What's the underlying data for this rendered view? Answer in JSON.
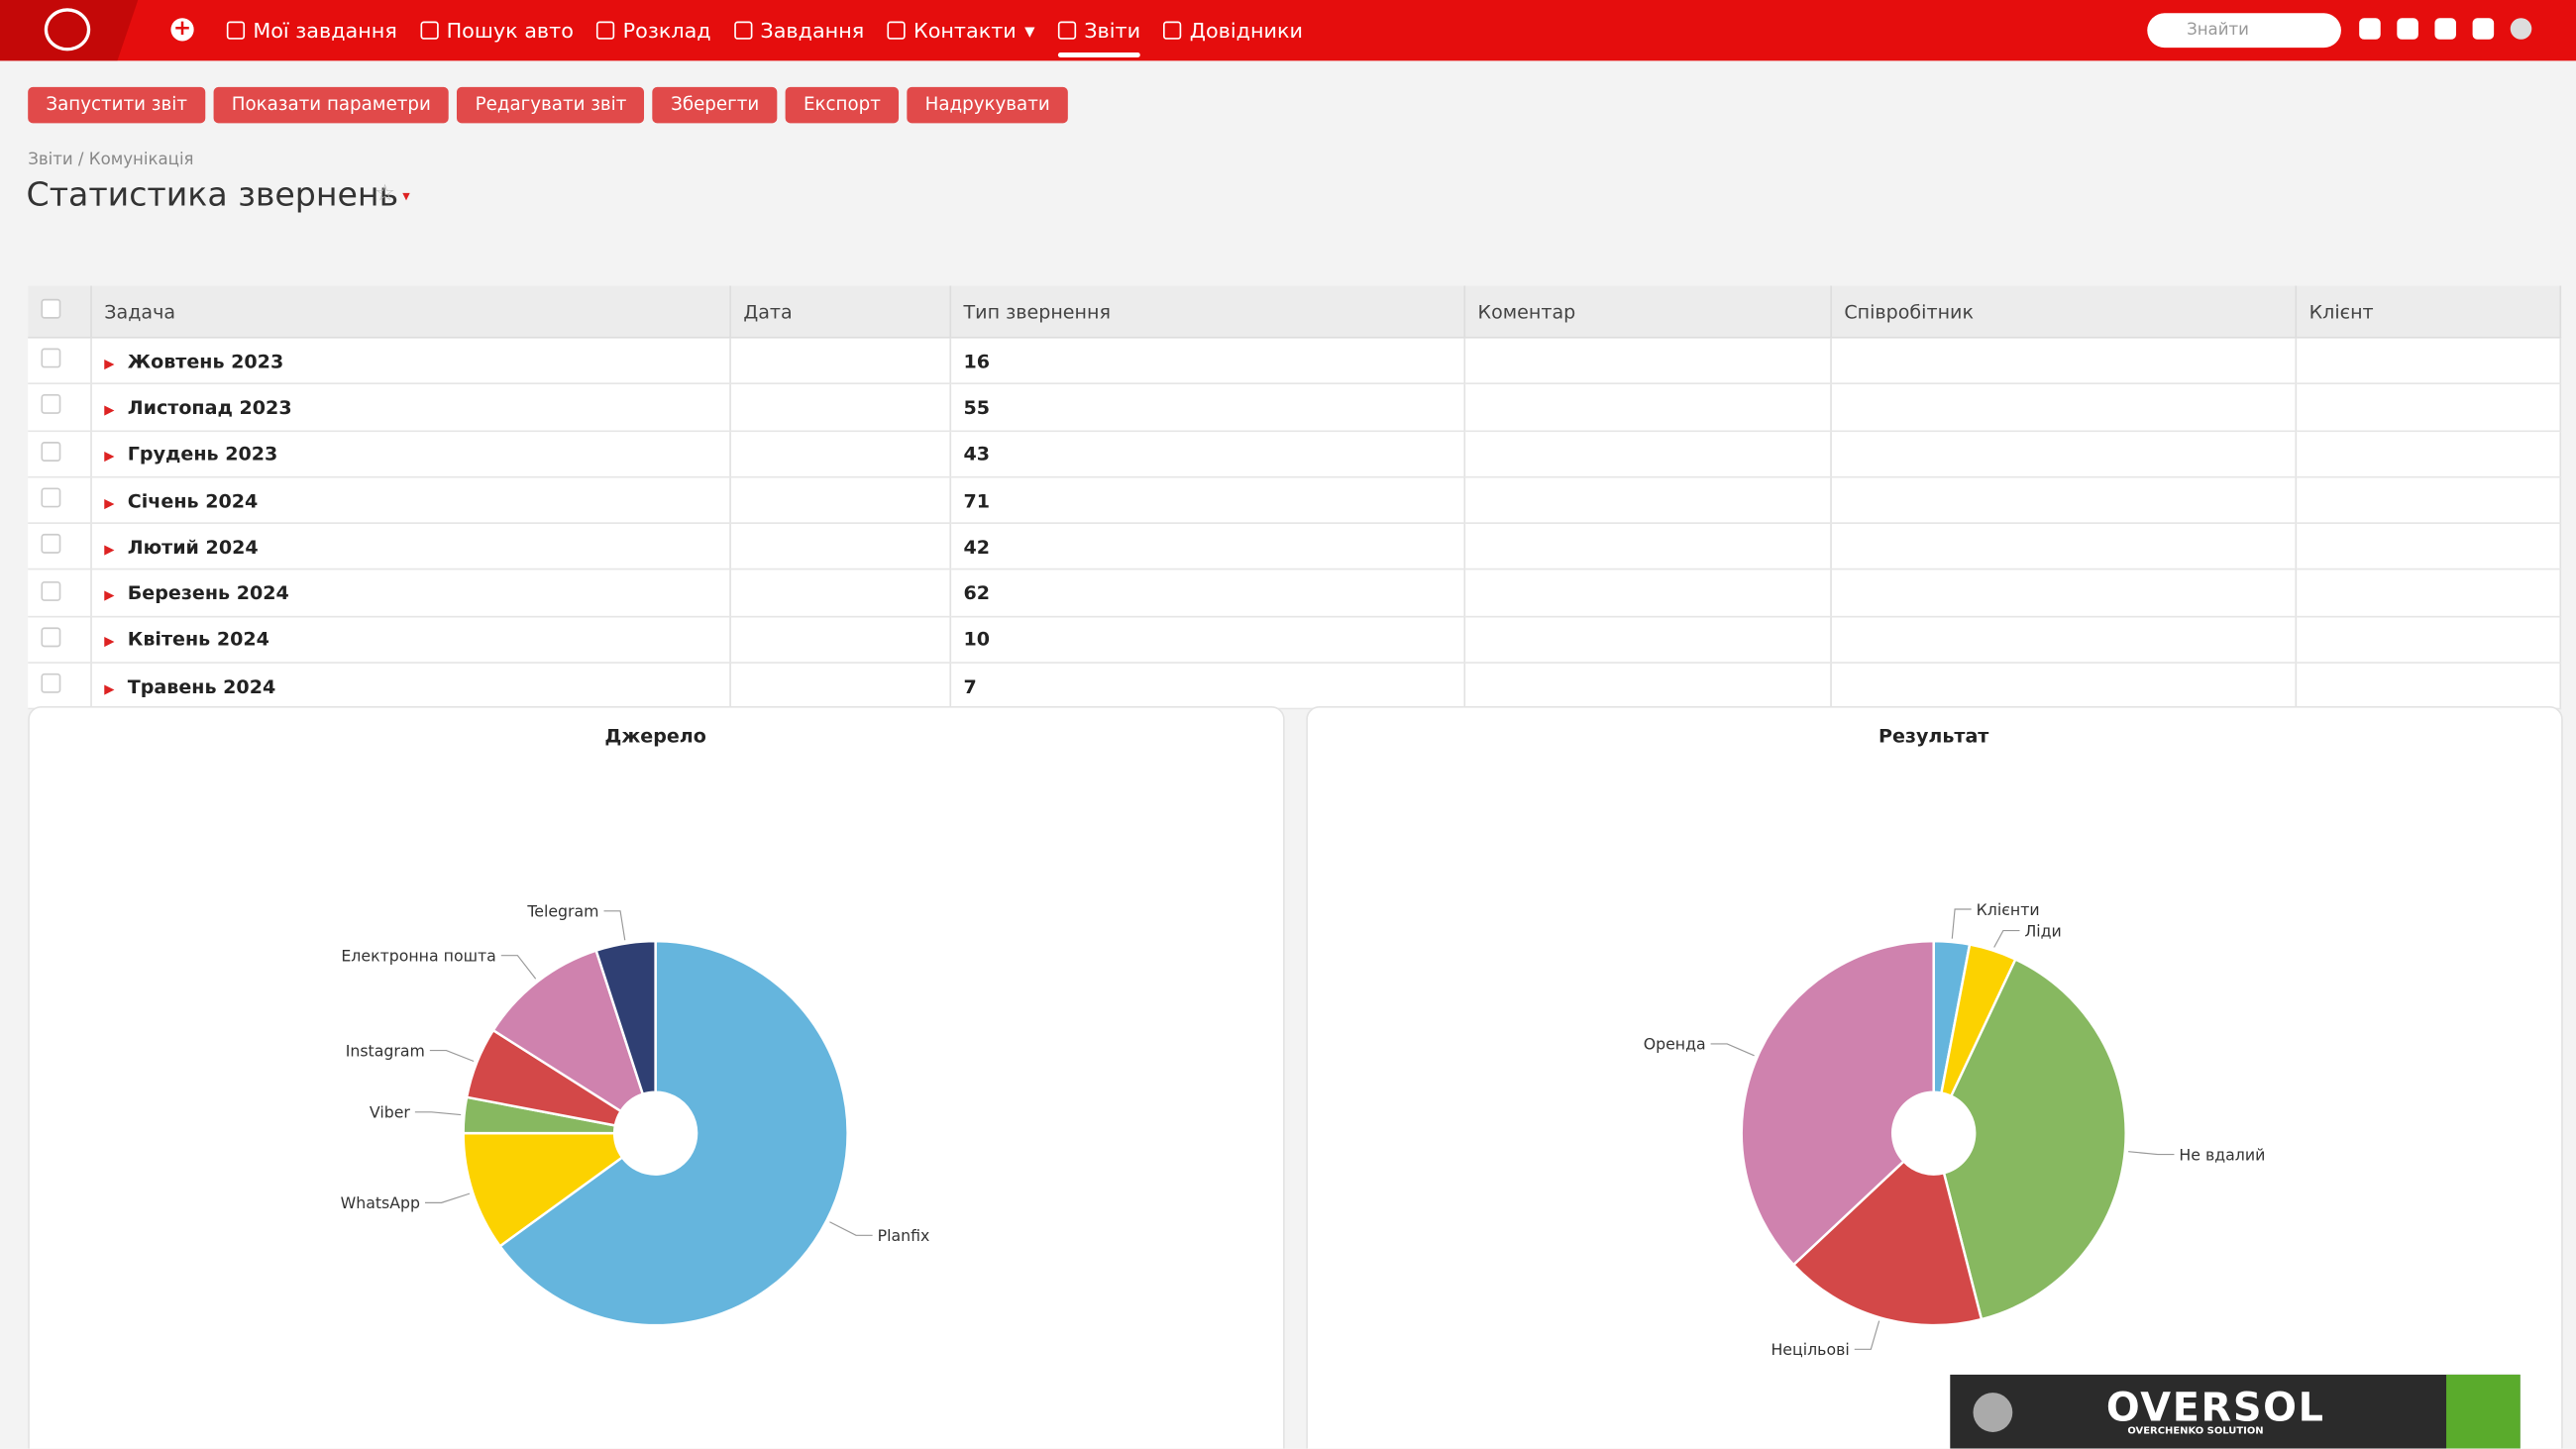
{
  "nav": [
    "Мої завдання",
    "Пошук авто",
    "Розклад",
    "Завдання",
    "Контакти",
    "Звіти",
    "Довідники"
  ],
  "search": "Знайти",
  "toolbar": [
    "Запустити звіт",
    "Показати параметри",
    "Редагувати звіт",
    "Зберегти",
    "Експорт",
    "Надрукувати"
  ],
  "breadcrumb": {
    "root": "Звіти /",
    "current": "Комунікація"
  },
  "title": "Статистика звернень",
  "table": {
    "columns": [
      "Задача",
      "Дата",
      "Тип звернення",
      "Коментар",
      "Співробітник",
      "Клієнт"
    ],
    "rows": [
      [
        "Жовтень 2023",
        16
      ],
      [
        "Листопад 2023",
        55
      ],
      [
        "Грудень 2023",
        43
      ],
      [
        "Січень 2024",
        71
      ],
      [
        "Лютий 2024",
        42
      ],
      [
        "Березень 2024",
        62
      ],
      [
        "Квітень 2024",
        10
      ],
      [
        "Травень 2024",
        7
      ]
    ]
  },
  "chart_data": [
    {
      "type": "pie",
      "title": "Джерело",
      "categories": [
        "Planfix",
        "WhatsApp",
        "Viber",
        "Instagram",
        "Електронна пошта",
        "Telegram"
      ],
      "values": [
        65,
        10,
        3,
        6,
        11,
        5
      ],
      "colors": [
        "#65b5dd",
        "#fcd200",
        "#87b860",
        "#d34848",
        "#cf82ae",
        "#2f3f73"
      ]
    },
    {
      "type": "pie",
      "title": "Результат",
      "categories": [
        "Клієнти",
        "Ліди",
        "Не вдалий",
        "Нецільові",
        "Оренда"
      ],
      "values": [
        3,
        4,
        39,
        17,
        37
      ],
      "colors": [
        "#65b5dd",
        "#fcd200",
        "#87b860",
        "#d34848",
        "#cf82ae"
      ]
    }
  ],
  "brand": {
    "name": "OVERSOL",
    "tagline": "OVERCHENKO SOLUTION"
  }
}
